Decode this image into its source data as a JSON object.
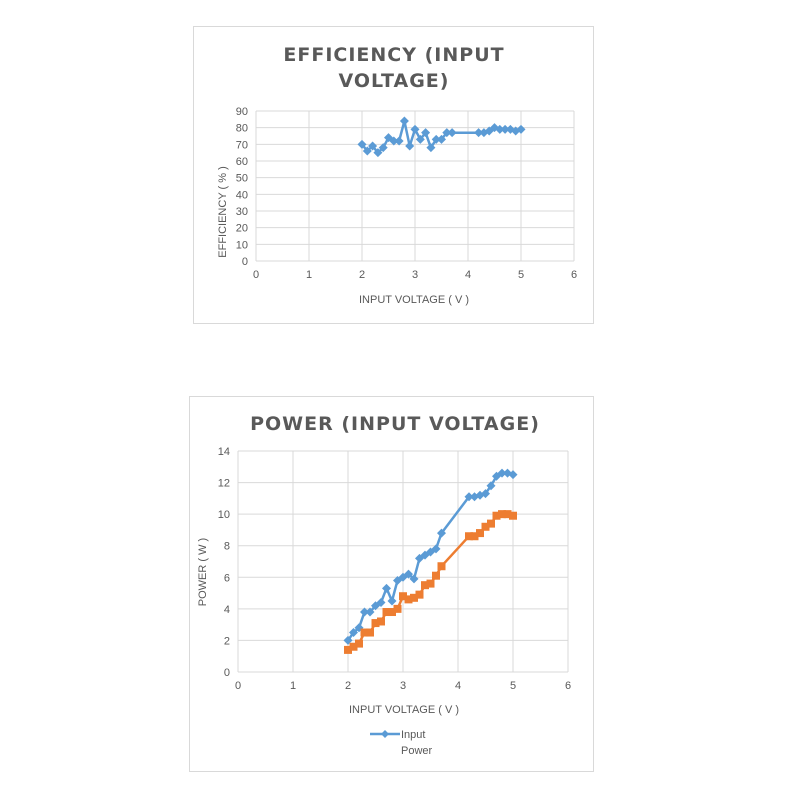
{
  "chart_data": [
    {
      "type": "line",
      "title_lines": [
        "EFFICIENCY (INPUT",
        "VOLTAGE)"
      ],
      "xlabel": "INPUT VOLTAGE ( V )",
      "ylabel": "EFFICIENCY ( % )",
      "xlim": [
        0,
        6
      ],
      "ylim": [
        0,
        90
      ],
      "xticks": [
        "0",
        "1",
        "2",
        "3",
        "4",
        "5",
        "6"
      ],
      "yticks": [
        "0",
        "10",
        "20",
        "30",
        "40",
        "50",
        "60",
        "70",
        "80",
        "90"
      ],
      "grid": true,
      "series": [
        {
          "color": "#5b9bd5",
          "marker": "diamond",
          "x": [
            2.0,
            2.1,
            2.2,
            2.3,
            2.4,
            2.5,
            2.6,
            2.7,
            2.8,
            2.9,
            3.0,
            3.1,
            3.2,
            3.3,
            3.4,
            3.5,
            3.6,
            3.7,
            4.2,
            4.3,
            4.4,
            4.5,
            4.6,
            4.7,
            4.8,
            4.9,
            5.0
          ],
          "y": [
            70,
            66,
            69,
            65,
            68,
            74,
            72,
            72,
            84,
            69,
            79,
            73,
            77,
            68,
            73,
            73,
            77,
            77,
            77,
            77,
            78,
            80,
            79,
            79,
            79,
            78,
            79
          ]
        }
      ]
    },
    {
      "type": "line",
      "title_lines": [
        "POWER (INPUT VOLTAGE)"
      ],
      "xlabel": "INPUT VOLTAGE ( V )",
      "ylabel": "POWER ( W )",
      "xlim": [
        0,
        6
      ],
      "ylim": [
        0,
        14
      ],
      "xticks": [
        "0",
        "1",
        "2",
        "3",
        "4",
        "5",
        "6"
      ],
      "yticks": [
        "0",
        "2",
        "4",
        "6",
        "8",
        "10",
        "12",
        "14"
      ],
      "grid": true,
      "legend": "bottom",
      "series": [
        {
          "name": "Input",
          "color": "#5b9bd5",
          "marker": "diamond",
          "x": [
            2.0,
            2.1,
            2.2,
            2.3,
            2.4,
            2.5,
            2.6,
            2.7,
            2.8,
            2.9,
            3.0,
            3.1,
            3.2,
            3.3,
            3.4,
            3.5,
            3.6,
            3.7,
            4.2,
            4.3,
            4.4,
            4.5,
            4.6,
            4.7,
            4.8,
            4.9,
            5.0
          ],
          "y": [
            2.0,
            2.5,
            2.8,
            3.8,
            3.8,
            4.2,
            4.4,
            5.3,
            4.5,
            5.8,
            6.0,
            6.2,
            5.9,
            7.2,
            7.4,
            7.6,
            7.8,
            8.8,
            11.1,
            11.1,
            11.2,
            11.3,
            11.8,
            12.4,
            12.6,
            12.6,
            12.5
          ]
        },
        {
          "name": "Power",
          "color": "#ed7d31",
          "marker": "square",
          "x": [
            2.0,
            2.1,
            2.2,
            2.3,
            2.4,
            2.5,
            2.6,
            2.7,
            2.8,
            2.9,
            3.0,
            3.1,
            3.2,
            3.3,
            3.4,
            3.5,
            3.6,
            3.7,
            4.2,
            4.3,
            4.4,
            4.5,
            4.6,
            4.7,
            4.8,
            4.9,
            5.0
          ],
          "y": [
            1.4,
            1.6,
            1.8,
            2.5,
            2.5,
            3.1,
            3.2,
            3.8,
            3.8,
            4.0,
            4.8,
            4.6,
            4.7,
            4.9,
            5.5,
            5.6,
            6.1,
            6.7,
            8.6,
            8.6,
            8.8,
            9.2,
            9.4,
            9.9,
            10.0,
            10.0,
            9.9
          ]
        }
      ]
    }
  ]
}
